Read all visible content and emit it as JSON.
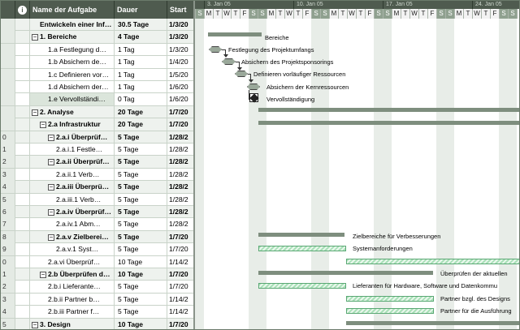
{
  "columns": {
    "name": "Name der Aufgabe",
    "duration": "Dauer",
    "start": "Start"
  },
  "rows": [
    {
      "id": "",
      "name": "Entwickeln einer Inf…",
      "duration": "30.5 Tage",
      "start": "1/3/20",
      "summary": true,
      "indent": 1,
      "toggle": ""
    },
    {
      "id": "",
      "name": "1. Bereiche",
      "duration": "4 Tage",
      "start": "1/3/20",
      "summary": true,
      "indent": 0,
      "toggle": "−"
    },
    {
      "id": "",
      "name": "1.a Festlegung d…",
      "duration": "1 Tag",
      "start": "1/3/20",
      "summary": false,
      "indent": 2,
      "toggle": ""
    },
    {
      "id": "",
      "name": "1.b Absichern de…",
      "duration": "1 Tag",
      "start": "1/4/20",
      "summary": false,
      "indent": 2,
      "toggle": ""
    },
    {
      "id": "",
      "name": "1.c Definieren vor…",
      "duration": "1 Tag",
      "start": "1/5/20",
      "summary": false,
      "indent": 2,
      "toggle": ""
    },
    {
      "id": "",
      "name": "1.d Absichern der…",
      "duration": "1 Tag",
      "start": "1/6/20",
      "summary": false,
      "indent": 2,
      "toggle": ""
    },
    {
      "id": "",
      "name": "1.e Vervollständi…",
      "duration": "0 Tag",
      "start": "1/6/20",
      "summary": false,
      "indent": 2,
      "toggle": "",
      "selected": true
    },
    {
      "id": "",
      "name": "2. Analyse",
      "duration": "20 Tage",
      "start": "1/7/20",
      "summary": true,
      "indent": 0,
      "toggle": "−"
    },
    {
      "id": "",
      "name": "2.a Infrastruktur",
      "duration": "20 Tage",
      "start": "1/7/20",
      "summary": true,
      "indent": 1,
      "toggle": "−"
    },
    {
      "id": "0",
      "name": "2.a.i Überprüf…",
      "duration": "5 Tage",
      "start": "1/28/2",
      "summary": true,
      "indent": 2,
      "toggle": "−"
    },
    {
      "id": "1",
      "name": "2.a.i.1 Festle…",
      "duration": "5 Tage",
      "start": "1/28/2",
      "summary": false,
      "indent": 3,
      "toggle": ""
    },
    {
      "id": "2",
      "name": "2.a.ii Überprüf…",
      "duration": "5 Tage",
      "start": "1/28/2",
      "summary": true,
      "indent": 2,
      "toggle": "−"
    },
    {
      "id": "3",
      "name": "2.a.ii.1 Verb…",
      "duration": "5 Tage",
      "start": "1/28/2",
      "summary": false,
      "indent": 3,
      "toggle": ""
    },
    {
      "id": "4",
      "name": "2.a.iii Überprü…",
      "duration": "5 Tage",
      "start": "1/28/2",
      "summary": true,
      "indent": 2,
      "toggle": "−"
    },
    {
      "id": "5",
      "name": "2.a.iii.1 Verb…",
      "duration": "5 Tage",
      "start": "1/28/2",
      "summary": false,
      "indent": 3,
      "toggle": ""
    },
    {
      "id": "6",
      "name": "2.a.iv Überprüf…",
      "duration": "5 Tage",
      "start": "1/28/2",
      "summary": true,
      "indent": 2,
      "toggle": "−"
    },
    {
      "id": "7",
      "name": "2.a.iv.1 Abm…",
      "duration": "5 Tage",
      "start": "1/28/2",
      "summary": false,
      "indent": 3,
      "toggle": ""
    },
    {
      "id": "8",
      "name": "2.a.v Zielberei…",
      "duration": "5 Tage",
      "start": "1/7/20",
      "summary": true,
      "indent": 2,
      "toggle": "−"
    },
    {
      "id": "9",
      "name": "2.a.v.1 Syst…",
      "duration": "5 Tage",
      "start": "1/7/20",
      "summary": false,
      "indent": 3,
      "toggle": ""
    },
    {
      "id": "0",
      "name": "2.a.vi Überprüf…",
      "duration": "10 Tage",
      "start": "1/14/2",
      "summary": false,
      "indent": 2,
      "toggle": ""
    },
    {
      "id": "1",
      "name": "2.b Überprüfen d…",
      "duration": "10 Tage",
      "start": "1/7/20",
      "summary": true,
      "indent": 1,
      "toggle": "−"
    },
    {
      "id": "2",
      "name": "2.b.i Lieferante…",
      "duration": "5 Tage",
      "start": "1/7/20",
      "summary": false,
      "indent": 2,
      "toggle": ""
    },
    {
      "id": "3",
      "name": "2.b.ii Partner b…",
      "duration": "5 Tage",
      "start": "1/14/2",
      "summary": false,
      "indent": 2,
      "toggle": ""
    },
    {
      "id": "4",
      "name": "2.b.iii Partner f…",
      "duration": "5 Tage",
      "start": "1/14/2",
      "summary": false,
      "indent": 2,
      "toggle": ""
    },
    {
      "id": "5",
      "name": "3. Design",
      "duration": "10 Tage",
      "start": "1/7/20",
      "summary": true,
      "indent": 0,
      "toggle": "−"
    }
  ],
  "timescale": {
    "weeks": [
      "3. Jan 05",
      "10. Jan 05",
      "17. Jan 05",
      "24. Jan 05"
    ],
    "days": [
      "S",
      "M",
      "T",
      "W",
      "T",
      "F",
      "S",
      "S",
      "M",
      "T",
      "W",
      "T",
      "F",
      "S",
      "S",
      "M",
      "T",
      "W",
      "T",
      "F",
      "S",
      "S",
      "M",
      "T",
      "W",
      "T",
      "F",
      "S",
      "S",
      "M",
      "T",
      "W",
      "T",
      "F",
      "S",
      "S",
      "M"
    ]
  },
  "gantt_labels": {
    "bereiche": "Bereiche",
    "festlegung": "Festlegung des Projektumfangs",
    "absichern_sponsor": "Absichern des Projektsponsorings",
    "definieren": "Definieren vorläufiger Ressourcen",
    "absichern_kern": "Absichern der Kernressourcen",
    "vervollstaendigung": "Vervollständigung",
    "zielbereiche": "Zielbereiche für Verbesserungen",
    "systemanforderungen": "Systemanforderungen",
    "ueberpruefen": "Überprüfen der aktuellen",
    "lieferanten": "Lieferanten für Hardware, Software und Datenkommu",
    "partner_design": "Partner bzgl. des Designs",
    "partner_ausfuehrung": "Partner für die Ausführung"
  },
  "colors": {
    "header_bg": "#4f5b4f",
    "summary_bar": "#7e8e7e",
    "task_bar": "#b7e7c3",
    "weekend": "#8fa08f"
  }
}
